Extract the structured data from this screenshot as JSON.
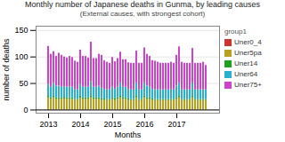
{
  "chart_data": {
    "type": "bar",
    "title": "Monthly number of Japanese deaths in Gunma, by leading causes",
    "subtitle": "(External causes, with strongest cohort)",
    "xlabel": "Months",
    "ylabel": "number of deaths",
    "categories": [
      "2013",
      null,
      null,
      null,
      null,
      null,
      null,
      null,
      null,
      null,
      null,
      null,
      "2014",
      null,
      null,
      null,
      null,
      null,
      null,
      null,
      null,
      null,
      null,
      null,
      "2015",
      null,
      null,
      null,
      null,
      null,
      null,
      null,
      null,
      null,
      null,
      null,
      "2016",
      null,
      null,
      null,
      null,
      null,
      null,
      null,
      null,
      null,
      null,
      null,
      "2017",
      null,
      null,
      null,
      null,
      null,
      null,
      null,
      null,
      null,
      null,
      null
    ],
    "series": [
      {
        "name": "Uner0_4",
        "color": "#cc3333",
        "values": [
          1,
          0,
          1,
          0,
          0,
          0,
          1,
          0,
          0,
          0,
          0,
          0,
          0,
          0,
          0,
          0,
          1,
          0,
          0,
          0,
          0,
          0,
          0,
          0,
          0,
          0,
          0,
          1,
          0,
          0,
          0,
          0,
          0,
          1,
          0,
          0,
          1,
          0,
          0,
          0,
          0,
          0,
          0,
          0,
          0,
          0,
          0,
          0,
          0,
          1,
          0,
          0,
          0,
          0,
          1,
          0,
          0,
          0,
          0,
          0
        ]
      },
      {
        "name": "Uner5pa",
        "color": "#b8a020",
        "values": [
          22,
          20,
          22,
          20,
          20,
          20,
          20,
          20,
          20,
          20,
          18,
          18,
          22,
          20,
          20,
          20,
          22,
          20,
          20,
          20,
          18,
          18,
          18,
          18,
          20,
          18,
          20,
          22,
          20,
          20,
          18,
          18,
          18,
          22,
          18,
          18,
          22,
          20,
          20,
          18,
          18,
          18,
          18,
          18,
          18,
          18,
          18,
          18,
          20,
          22,
          18,
          18,
          18,
          18,
          22,
          18,
          18,
          18,
          18,
          18
        ]
      },
      {
        "name": "Uner14",
        "color": "#20a020",
        "values": [
          3,
          3,
          3,
          3,
          3,
          3,
          3,
          3,
          3,
          3,
          2,
          2,
          4,
          3,
          3,
          3,
          4,
          3,
          3,
          3,
          3,
          3,
          2,
          2,
          3,
          3,
          3,
          4,
          3,
          3,
          3,
          2,
          2,
          4,
          2,
          2,
          4,
          3,
          3,
          3,
          2,
          2,
          2,
          2,
          2,
          2,
          2,
          2,
          3,
          4,
          2,
          2,
          2,
          2,
          4,
          2,
          2,
          2,
          2,
          2
        ]
      },
      {
        "name": "Uner64",
        "color": "#28b0cc",
        "values": [
          22,
          20,
          24,
          22,
          22,
          20,
          20,
          20,
          20,
          20,
          18,
          18,
          22,
          20,
          20,
          20,
          26,
          20,
          20,
          22,
          20,
          18,
          18,
          18,
          20,
          18,
          20,
          24,
          20,
          20,
          18,
          18,
          18,
          24,
          18,
          18,
          24,
          22,
          20,
          18,
          18,
          18,
          18,
          18,
          18,
          18,
          18,
          18,
          22,
          24,
          18,
          18,
          18,
          18,
          24,
          18,
          18,
          18,
          18,
          18
        ]
      },
      {
        "name": "Uner75+",
        "color": "#cc44cc",
        "values": [
          72,
          62,
          60,
          56,
          62,
          60,
          56,
          55,
          58,
          56,
          54,
          52,
          65,
          58,
          58,
          55,
          75,
          54,
          54,
          60,
          62,
          54,
          52,
          50,
          56,
          52,
          54,
          58,
          52,
          52,
          50,
          50,
          50,
          60,
          50,
          50,
          66,
          60,
          58,
          54,
          54,
          52,
          50,
          50,
          50,
          50,
          52,
          50,
          58,
          68,
          52,
          50,
          50,
          50,
          65,
          50,
          50,
          50,
          52,
          46
        ]
      }
    ],
    "stacked": true,
    "ylim": [
      -6,
      158
    ],
    "yticks": [
      0,
      50,
      100,
      150
    ],
    "grid": true,
    "legend": "right",
    "legend_title": "group1"
  }
}
